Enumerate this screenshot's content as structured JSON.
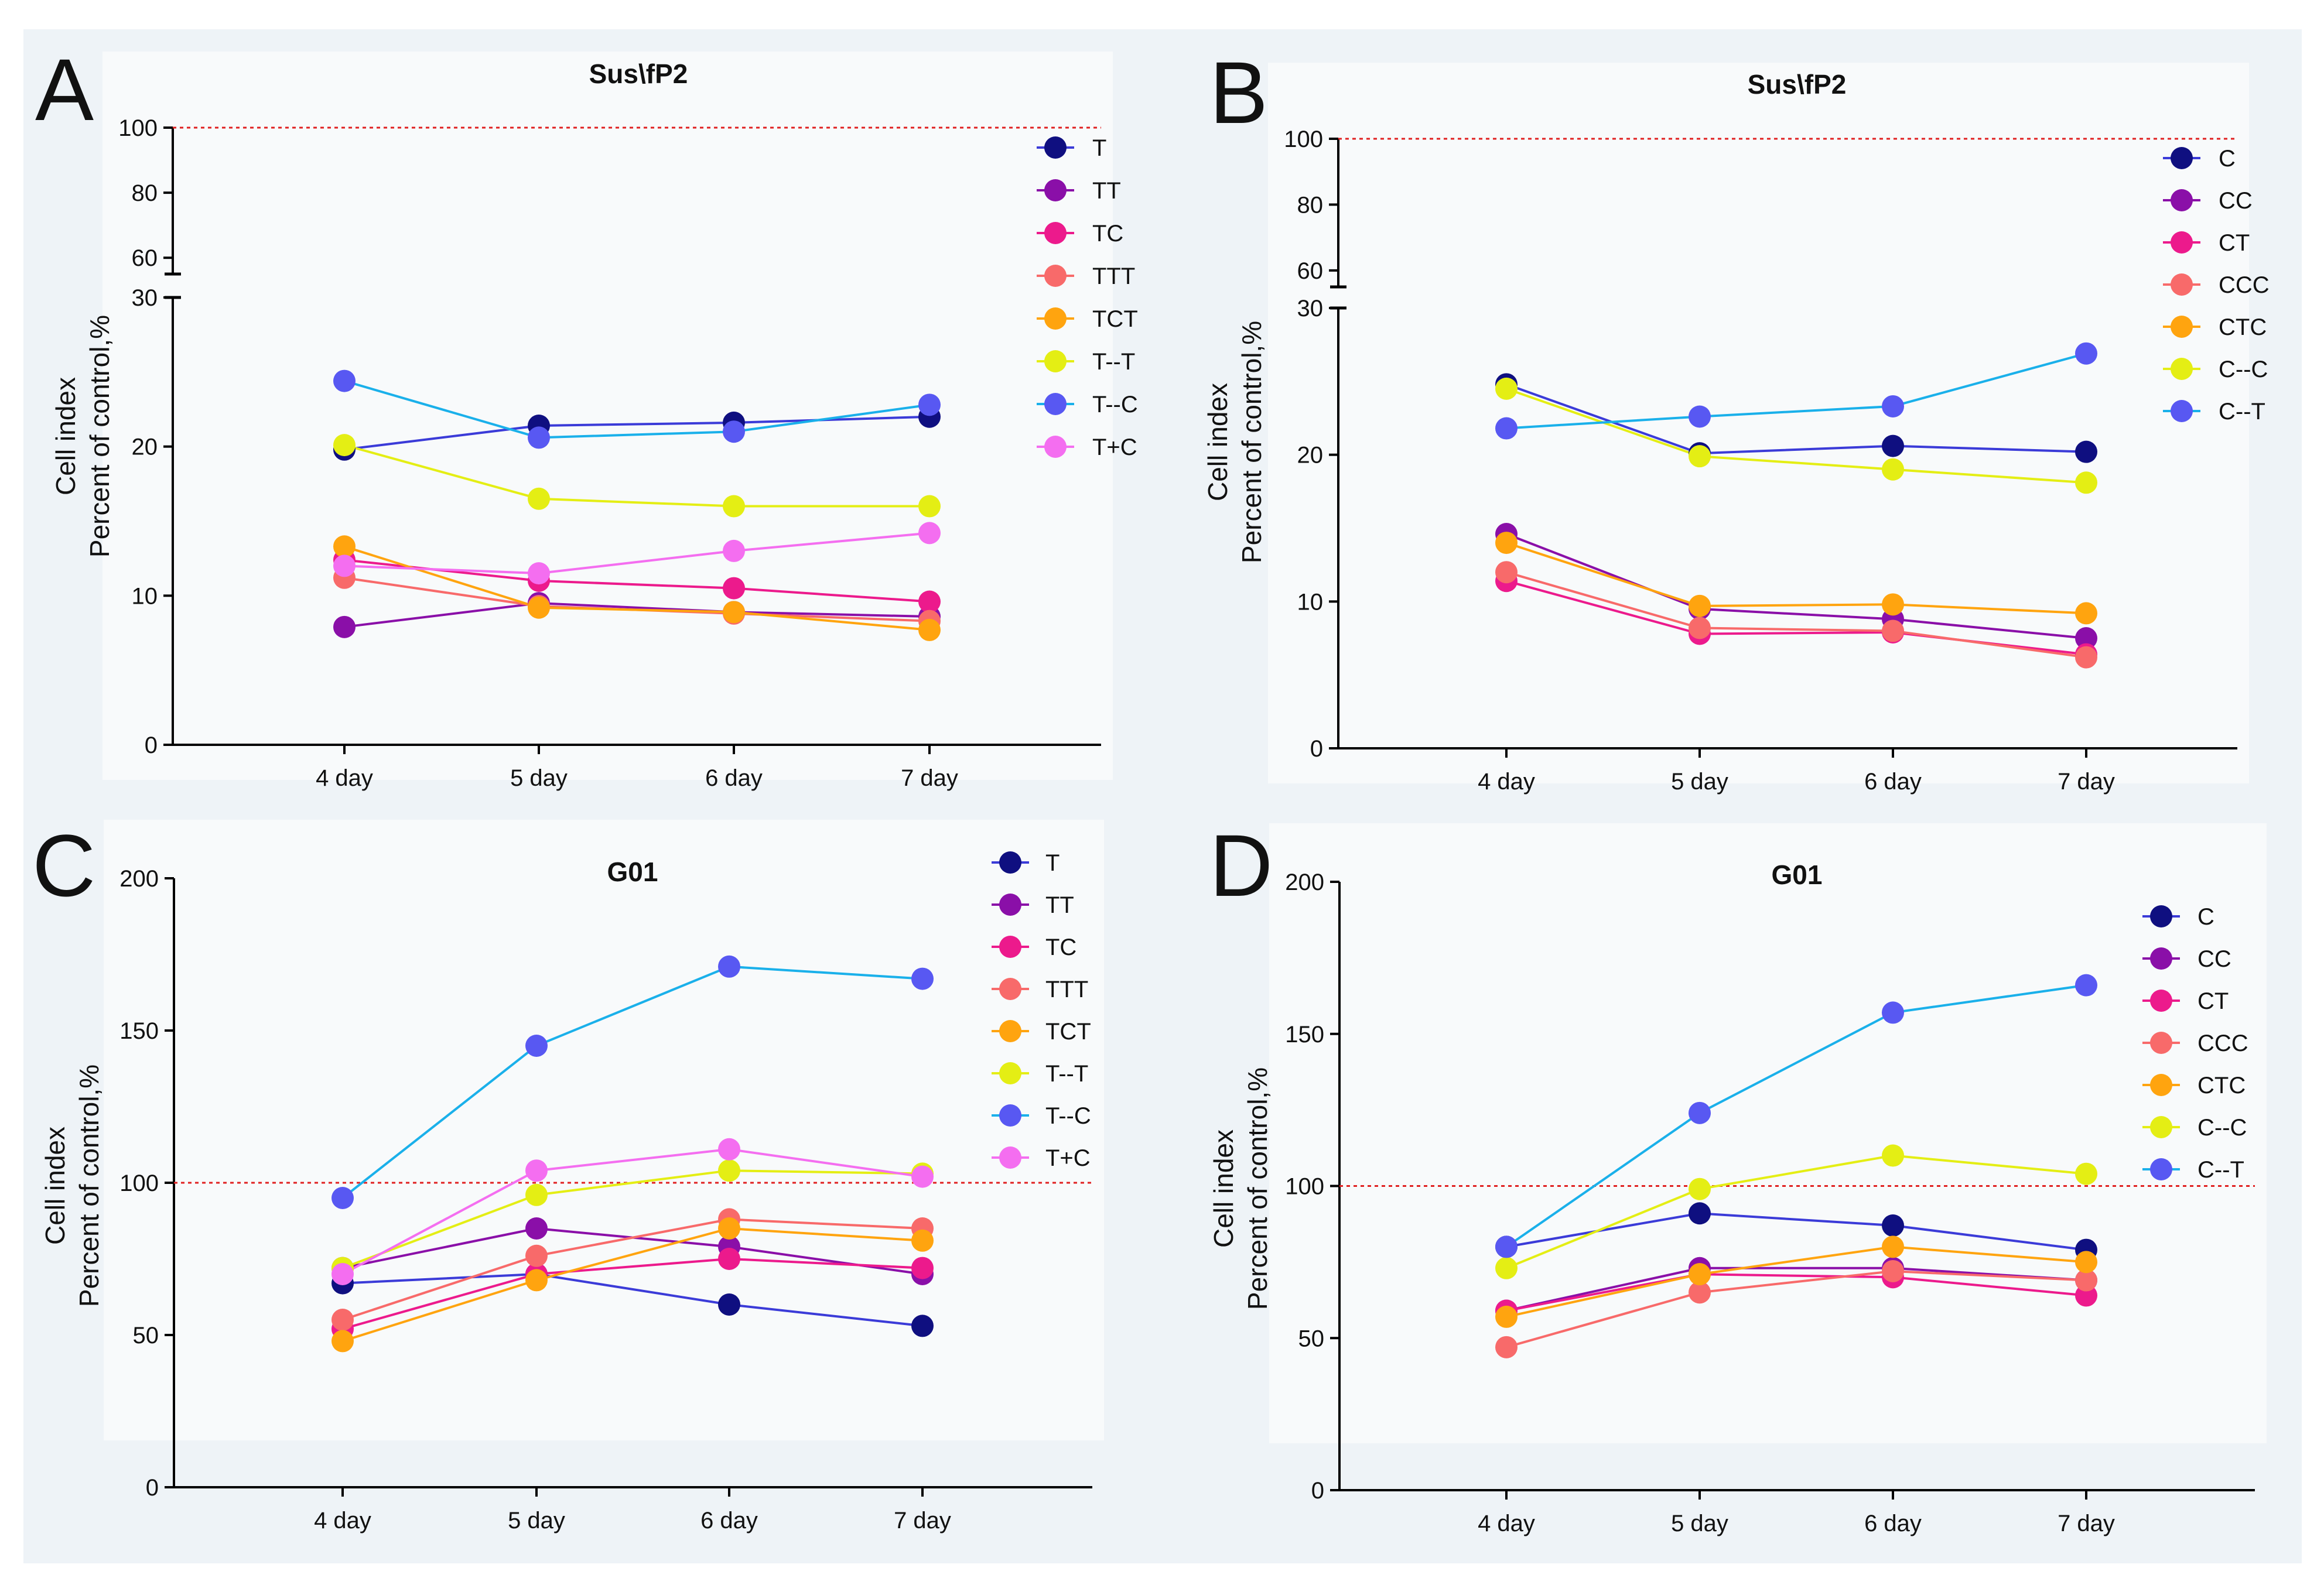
{
  "colors": {
    "background": "#eef3f7",
    "plot_bg": "#f8fafb",
    "axis": "#000000",
    "reference_line": "#e02020",
    "T": "#0f0f80",
    "C": "#0f0f80",
    "TT": "#8a0fa8",
    "CC": "#8a0fa8",
    "TC": "#ec1a8c",
    "CT": "#ec1a8c",
    "TTT": "#f86a6a",
    "CCC": "#f86a6a",
    "TCT": "#ffa40f",
    "CTC": "#ffa40f",
    "T--T": "#e4ee14",
    "C--C": "#e4ee14",
    "T--C": "#5858f2",
    "C--T": "#5858f2",
    "T+C": "#f46ef0",
    "line_T": "#3b3bd8",
    "line_T--C": "#1ab0ea"
  },
  "chart_data": [
    {
      "panel": "A",
      "type": "line",
      "title": "Sus\\fP2",
      "ylabel": [
        "Cell index",
        "Percent of control,%"
      ],
      "xlabel": "",
      "categories": [
        "4 day",
        "5 day",
        "6 day",
        "7 day"
      ],
      "y_axis_broken": true,
      "ylim_lower": [
        0,
        30
      ],
      "yticks_lower": [
        "0",
        "10",
        "20",
        "30"
      ],
      "ylim_upper": [
        55,
        100
      ],
      "yticks_upper": [
        "60",
        "80",
        "100"
      ],
      "reference_line": 100,
      "series": [
        {
          "name": "T",
          "values": [
            19.8,
            21.4,
            21.6,
            22.0
          ]
        },
        {
          "name": "TT",
          "values": [
            7.9,
            9.5,
            8.9,
            8.6
          ]
        },
        {
          "name": "TC",
          "values": [
            12.4,
            11.0,
            10.5,
            9.6
          ]
        },
        {
          "name": "TTT",
          "values": [
            11.2,
            9.3,
            8.8,
            8.3
          ]
        },
        {
          "name": "TCT",
          "values": [
            13.3,
            9.2,
            8.9,
            7.7
          ]
        },
        {
          "name": "T--T",
          "values": [
            20.1,
            16.5,
            16.0,
            16.0
          ]
        },
        {
          "name": "T--C",
          "values": [
            24.4,
            20.6,
            21.0,
            22.8
          ]
        },
        {
          "name": "T+C",
          "values": [
            12.0,
            11.5,
            13.0,
            14.2
          ]
        }
      ]
    },
    {
      "panel": "B",
      "type": "line",
      "title": "Sus\\fP2",
      "ylabel": [
        "Cell index",
        "Percent of control,%"
      ],
      "xlabel": "",
      "categories": [
        "4 day",
        "5 day",
        "6 day",
        "7 day"
      ],
      "y_axis_broken": true,
      "ylim_lower": [
        0,
        30
      ],
      "yticks_lower": [
        "0",
        "10",
        "20",
        "30"
      ],
      "ylim_upper": [
        55,
        100
      ],
      "yticks_upper": [
        "60",
        "80",
        "100"
      ],
      "reference_line": 100,
      "series": [
        {
          "name": "C",
          "values": [
            24.8,
            20.1,
            20.6,
            20.2
          ]
        },
        {
          "name": "CC",
          "values": [
            14.6,
            9.5,
            8.8,
            7.5
          ]
        },
        {
          "name": "CT",
          "values": [
            11.4,
            7.8,
            7.9,
            6.4
          ]
        },
        {
          "name": "CCC",
          "values": [
            12.0,
            8.2,
            8.0,
            6.2
          ]
        },
        {
          "name": "CTC",
          "values": [
            14.0,
            9.7,
            9.8,
            9.2
          ]
        },
        {
          "name": "C--C",
          "values": [
            24.5,
            19.9,
            19.0,
            18.1
          ]
        },
        {
          "name": "C--T",
          "values": [
            21.8,
            22.6,
            23.3,
            26.9
          ]
        }
      ]
    },
    {
      "panel": "C",
      "type": "line",
      "title": "G01",
      "ylabel": [
        "Cell index",
        "Percent of control,%"
      ],
      "xlabel": "",
      "categories": [
        "4 day",
        "5 day",
        "6 day",
        "7 day"
      ],
      "y_axis_broken": false,
      "ylim": [
        0,
        200
      ],
      "yticks": [
        "0",
        "50",
        "100",
        "150",
        "200"
      ],
      "reference_line": 100,
      "series": [
        {
          "name": "T",
          "values": [
            67,
            70,
            60,
            53
          ]
        },
        {
          "name": "TT",
          "values": [
            72,
            85,
            79,
            70
          ]
        },
        {
          "name": "TC",
          "values": [
            52,
            70,
            75,
            72
          ]
        },
        {
          "name": "TTT",
          "values": [
            55,
            76,
            88,
            85
          ]
        },
        {
          "name": "TCT",
          "values": [
            48,
            68,
            85,
            81
          ]
        },
        {
          "name": "T--T",
          "values": [
            72,
            96,
            104,
            103
          ]
        },
        {
          "name": "T--C",
          "values": [
            95,
            145,
            171,
            167
          ]
        },
        {
          "name": "T+C",
          "values": [
            70,
            104,
            111,
            102
          ]
        }
      ]
    },
    {
      "panel": "D",
      "type": "line",
      "title": "G01",
      "ylabel": [
        "Cell index",
        "Percent of control,%"
      ],
      "xlabel": "",
      "categories": [
        "4 day",
        "5 day",
        "6 day",
        "7 day"
      ],
      "y_axis_broken": false,
      "ylim": [
        0,
        200
      ],
      "yticks": [
        "0",
        "50",
        "100",
        "150",
        "200"
      ],
      "reference_line": 100,
      "series": [
        {
          "name": "C",
          "values": [
            80,
            91,
            87,
            79
          ]
        },
        {
          "name": "CC",
          "values": [
            59,
            73,
            73,
            69
          ]
        },
        {
          "name": "CT",
          "values": [
            59,
            71,
            70,
            64
          ]
        },
        {
          "name": "CCC",
          "values": [
            47,
            65,
            72,
            69
          ]
        },
        {
          "name": "CTC",
          "values": [
            57,
            71,
            80,
            75
          ]
        },
        {
          "name": "C--C",
          "values": [
            73,
            99,
            110,
            104
          ]
        },
        {
          "name": "C--T",
          "values": [
            80,
            124,
            157,
            166
          ]
        }
      ]
    }
  ]
}
